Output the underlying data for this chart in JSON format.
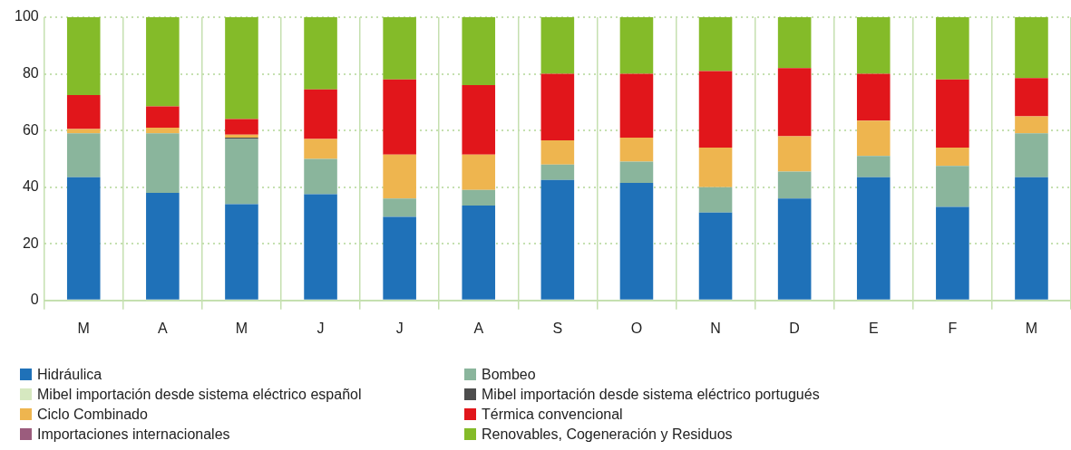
{
  "chart_data": {
    "type": "bar",
    "stacked": true,
    "categories": [
      "M",
      "A",
      "M",
      "J",
      "J",
      "A",
      "S",
      "O",
      "N",
      "D",
      "E",
      "F",
      "M"
    ],
    "ylim": [
      0,
      100
    ],
    "yticks": [
      0,
      20,
      40,
      60,
      80,
      100
    ],
    "grid": true,
    "legend": "bottom",
    "series": [
      {
        "name": "Hidráulica",
        "color": "#1f71b8",
        "values": [
          43.5,
          38,
          34,
          37.5,
          29.5,
          33.5,
          42.5,
          41.5,
          31,
          36,
          43.5,
          33,
          43.5
        ]
      },
      {
        "name": "Bombeo",
        "color": "#8ab59c",
        "values": [
          15.5,
          21,
          23,
          12.5,
          6.5,
          5.5,
          5.5,
          7.5,
          9,
          9.5,
          7.5,
          14.5,
          15.5
        ]
      },
      {
        "name": "Mibel importación desde sistema eléctrico español",
        "color": "#d6e8c0",
        "values": [
          0,
          0,
          0,
          0,
          0,
          0,
          0,
          0,
          0,
          0,
          0,
          0,
          0
        ]
      },
      {
        "name": "Mibel importación desde sistema eléctrico portugués",
        "color": "#4d4d4d",
        "values": [
          0,
          0,
          0.5,
          0,
          0,
          0,
          0,
          0,
          0,
          0,
          0,
          0,
          0
        ]
      },
      {
        "name": "Ciclo Combinado",
        "color": "#eeb54f",
        "values": [
          1.5,
          2,
          1,
          7,
          15.5,
          12.5,
          8.5,
          8.5,
          14,
          12.5,
          12.5,
          6.5,
          6
        ]
      },
      {
        "name": "Térmica convencional",
        "color": "#e1161b",
        "values": [
          12,
          7.5,
          5.5,
          17.5,
          26.5,
          24.5,
          23.5,
          22.5,
          27,
          24,
          16.5,
          24,
          13.5
        ]
      },
      {
        "name": "Importaciones internacionales",
        "color": "#9b5c7d",
        "values": [
          0,
          0,
          0,
          0,
          0,
          0,
          0,
          0,
          0,
          0,
          0,
          0,
          0
        ]
      },
      {
        "name": "Renovables, Cogeneración y Residuos",
        "color": "#84bb29",
        "values": [
          27.5,
          31.5,
          36,
          25.5,
          22,
          24,
          20,
          20,
          19,
          18,
          20,
          22,
          21.5
        ]
      }
    ]
  }
}
